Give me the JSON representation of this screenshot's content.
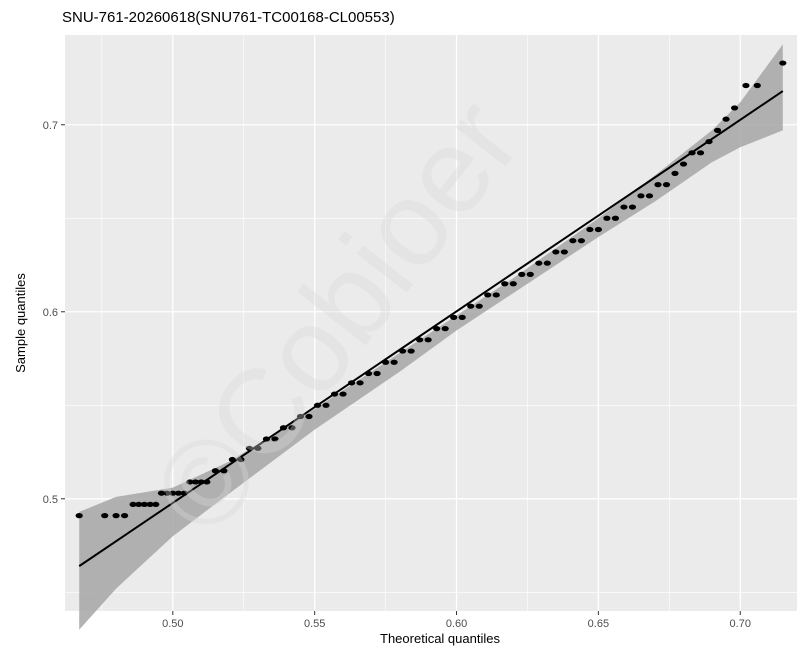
{
  "chart_data": {
    "type": "scatter",
    "title": "SNU-761-20260618(SNU761-TC00168-CL00553)",
    "xlabel": "Theoretical quantiles",
    "ylabel": "Sample quantiles",
    "xlim": [
      0.462,
      0.72
    ],
    "ylim": [
      0.44,
      0.748
    ],
    "xticks": [
      0.5,
      0.55,
      0.6,
      0.65,
      0.7
    ],
    "xtick_labels": [
      "0.50",
      "0.55",
      "0.60",
      "0.65",
      "0.70"
    ],
    "yticks": [
      0.5,
      0.6,
      0.7
    ],
    "ytick_labels": [
      "0.5",
      "0.6",
      "0.7"
    ],
    "grid": true,
    "watermark": "©Cobioer",
    "colors": {
      "panel": "#ebebeb",
      "grid": "#ffffff",
      "points": "#000000",
      "line": "#000000",
      "band": "#a6a6a6"
    },
    "series": [
      {
        "kind": "points",
        "x": [
          0.467,
          0.476,
          0.48,
          0.483,
          0.486,
          0.488,
          0.49,
          0.492,
          0.494,
          0.496,
          0.498,
          0.5,
          0.502,
          0.504,
          0.506,
          0.508,
          0.51,
          0.512,
          0.515,
          0.518,
          0.521,
          0.524,
          0.527,
          0.53,
          0.533,
          0.536,
          0.539,
          0.542,
          0.545,
          0.548,
          0.551,
          0.554,
          0.557,
          0.56,
          0.563,
          0.566,
          0.569,
          0.572,
          0.575,
          0.578,
          0.581,
          0.584,
          0.587,
          0.59,
          0.593,
          0.596,
          0.599,
          0.602,
          0.605,
          0.608,
          0.611,
          0.614,
          0.617,
          0.62,
          0.623,
          0.626,
          0.629,
          0.632,
          0.635,
          0.638,
          0.641,
          0.644,
          0.647,
          0.65,
          0.653,
          0.656,
          0.659,
          0.662,
          0.665,
          0.668,
          0.671,
          0.674,
          0.677,
          0.68,
          0.683,
          0.686,
          0.689,
          0.692,
          0.695,
          0.698,
          0.702,
          0.706,
          0.715
        ],
        "y": [
          0.491,
          0.491,
          0.491,
          0.491,
          0.497,
          0.497,
          0.497,
          0.497,
          0.497,
          0.503,
          0.503,
          0.503,
          0.503,
          0.503,
          0.509,
          0.509,
          0.509,
          0.509,
          0.515,
          0.515,
          0.521,
          0.521,
          0.527,
          0.527,
          0.532,
          0.532,
          0.538,
          0.538,
          0.544,
          0.544,
          0.55,
          0.55,
          0.556,
          0.556,
          0.562,
          0.562,
          0.567,
          0.567,
          0.573,
          0.573,
          0.579,
          0.579,
          0.585,
          0.585,
          0.591,
          0.591,
          0.597,
          0.597,
          0.603,
          0.603,
          0.609,
          0.609,
          0.615,
          0.615,
          0.62,
          0.62,
          0.626,
          0.626,
          0.632,
          0.632,
          0.638,
          0.638,
          0.644,
          0.644,
          0.65,
          0.65,
          0.656,
          0.656,
          0.662,
          0.662,
          0.668,
          0.668,
          0.674,
          0.679,
          0.685,
          0.685,
          0.691,
          0.697,
          0.703,
          0.709,
          0.721,
          0.721,
          0.733
        ]
      },
      {
        "kind": "line",
        "x": [
          0.467,
          0.715
        ],
        "y": [
          0.464,
          0.718
        ]
      },
      {
        "kind": "band",
        "x": [
          0.467,
          0.48,
          0.5,
          0.52,
          0.55,
          0.58,
          0.6,
          0.62,
          0.65,
          0.67,
          0.69,
          0.7,
          0.715
        ],
        "lower": [
          0.43,
          0.452,
          0.48,
          0.503,
          0.537,
          0.568,
          0.59,
          0.61,
          0.64,
          0.659,
          0.68,
          0.688,
          0.697
        ],
        "upper": [
          0.493,
          0.501,
          0.506,
          0.52,
          0.548,
          0.578,
          0.598,
          0.618,
          0.65,
          0.673,
          0.697,
          0.712,
          0.743
        ]
      }
    ]
  }
}
